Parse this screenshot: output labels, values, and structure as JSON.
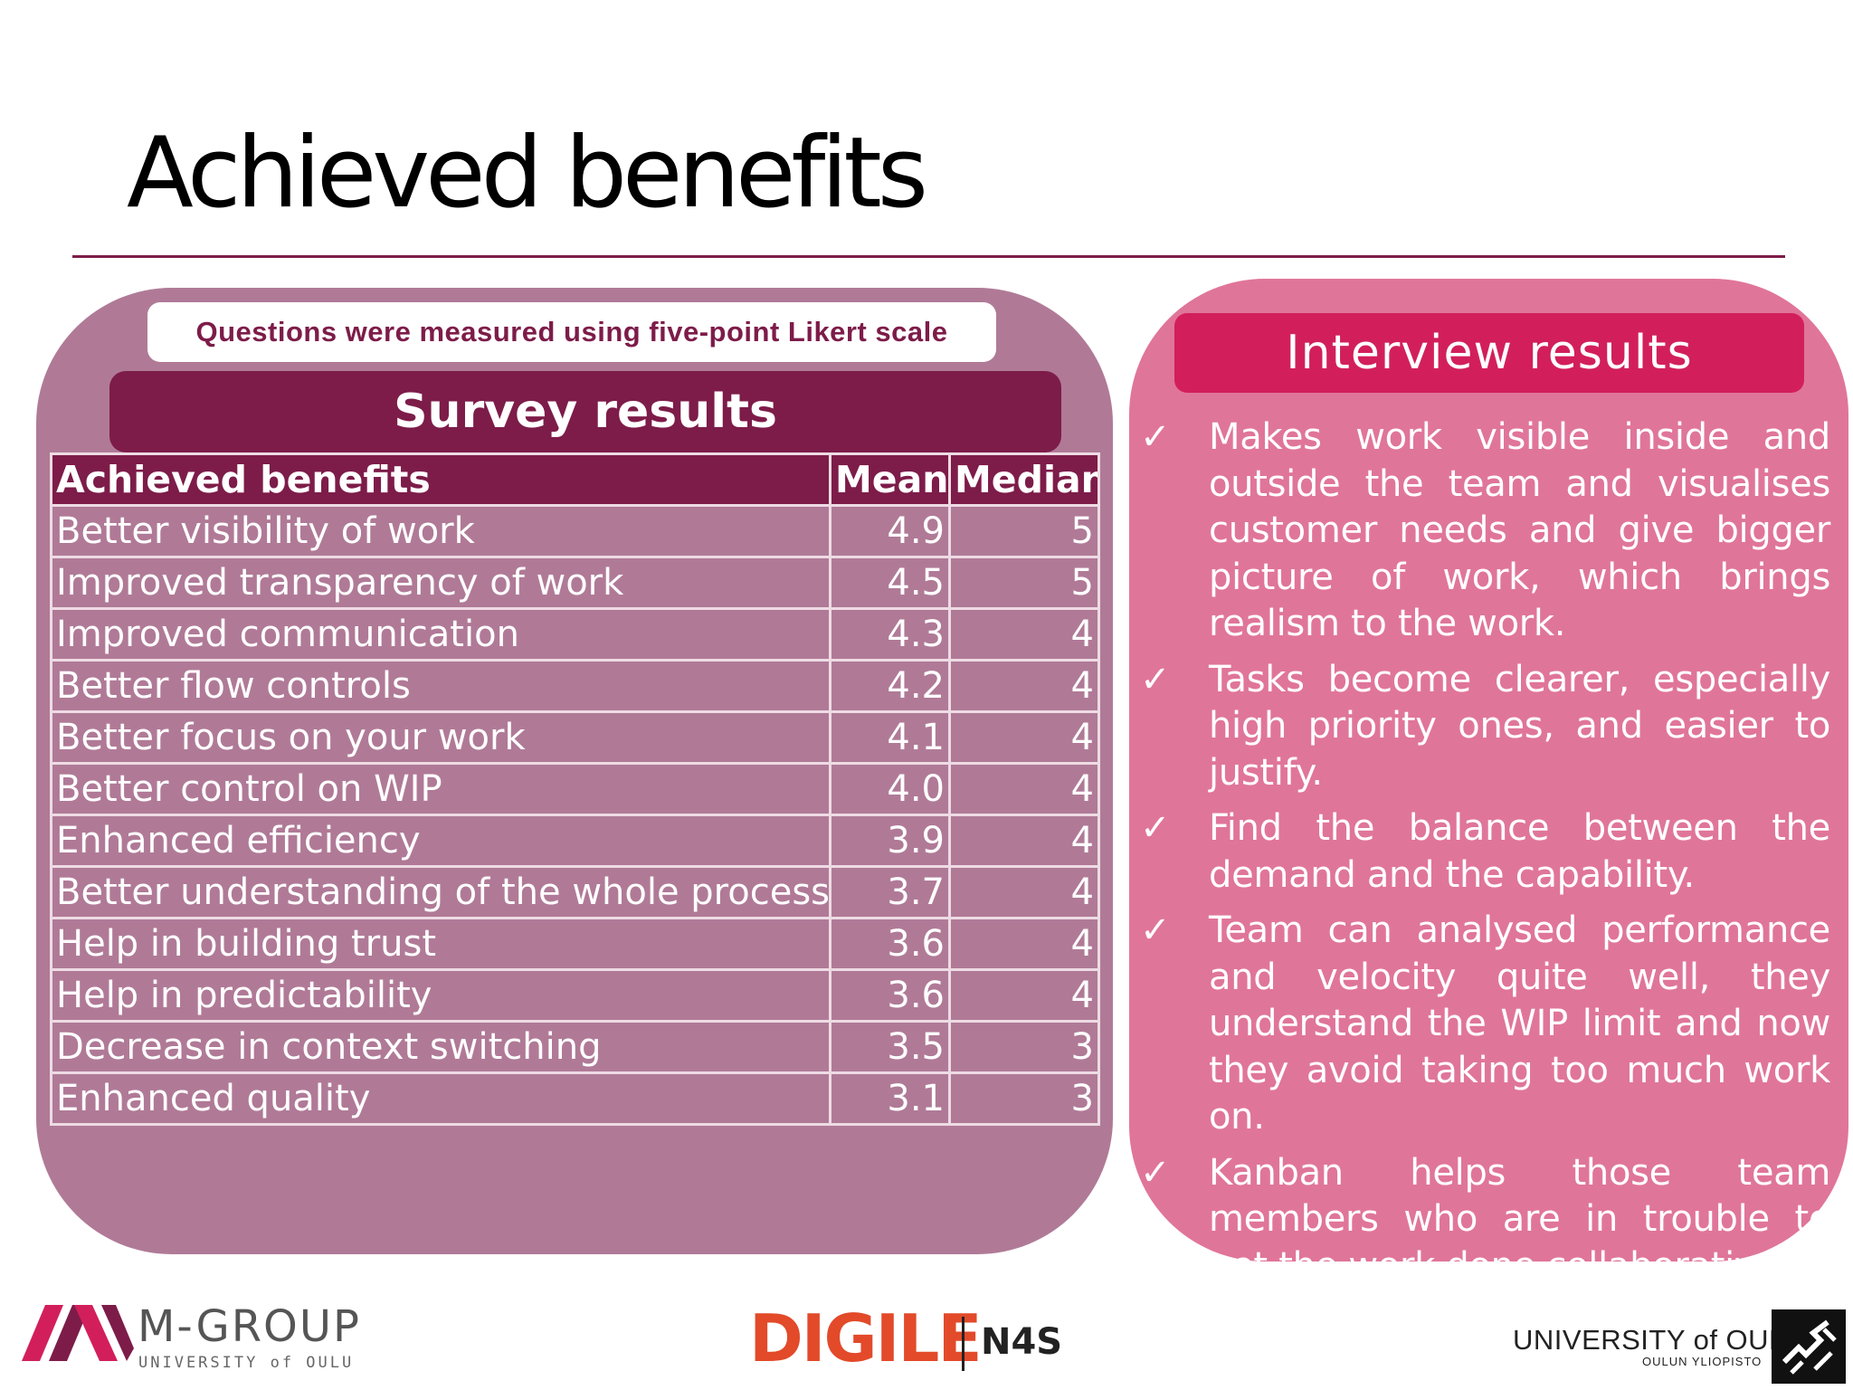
{
  "slide": {
    "title": "Achieved benefits"
  },
  "survey": {
    "note": "Questions were measured using five-point Likert scale",
    "header": "Survey results",
    "columns": [
      "Achieved benefits",
      "Mean",
      "Median"
    ],
    "rows": [
      {
        "benefit": "Better visibility of work",
        "mean": "4.9",
        "median": "5"
      },
      {
        "benefit": "Improved transparency of work",
        "mean": "4.5",
        "median": "5"
      },
      {
        "benefit": "Improved communication",
        "mean": "4.3",
        "median": "4"
      },
      {
        "benefit": "Better flow controls",
        "mean": "4.2",
        "median": "4"
      },
      {
        "benefit": "Better focus on your work",
        "mean": "4.1",
        "median": "4"
      },
      {
        "benefit": "Better control on WIP",
        "mean": "4.0",
        "median": "4"
      },
      {
        "benefit": "Enhanced efficiency",
        "mean": "3.9",
        "median": "4"
      },
      {
        "benefit": "Better understanding of the whole process",
        "mean": "3.7",
        "median": "4"
      },
      {
        "benefit": "Help in building trust",
        "mean": "3.6",
        "median": "4"
      },
      {
        "benefit": "Help in predictability",
        "mean": "3.6",
        "median": "4"
      },
      {
        "benefit": "Decrease in context switching",
        "mean": "3.5",
        "median": "3"
      },
      {
        "benefit": "Enhanced quality",
        "mean": "3.1",
        "median": "3"
      }
    ]
  },
  "interview": {
    "header": "Interview results",
    "bullet_icon": "checkmark-icon",
    "bullets": [
      "Makes work visible inside and outside the team and visualises customer needs and give bigger picture of work, which brings realism to the work.",
      "Tasks become clearer, especially high priority ones, and easier to justify.",
      "Find the balance between the demand and the capability.",
      "Team can analysed performance and velocity quite well, they understand the WIP limit and now they avoid taking too much work on.",
      "Kanban helps those team members who are in trouble to get the work done collaboratively."
    ]
  },
  "footer": {
    "mgroup_name": "M-GROUP",
    "mgroup_sub": "UNIVERSITY of OULU",
    "digile": "DIGILE",
    "n4s": "N4S",
    "oulu_name": "UNIVERSITY of OULU",
    "oulu_sub": "OULUN YLIOPISTO"
  },
  "colors": {
    "survey_panel": "#b07a97",
    "survey_header": "#7d1c49",
    "interview_panel": "#e0759a",
    "interview_header": "#d21f5c",
    "rule": "#7d1c49"
  }
}
